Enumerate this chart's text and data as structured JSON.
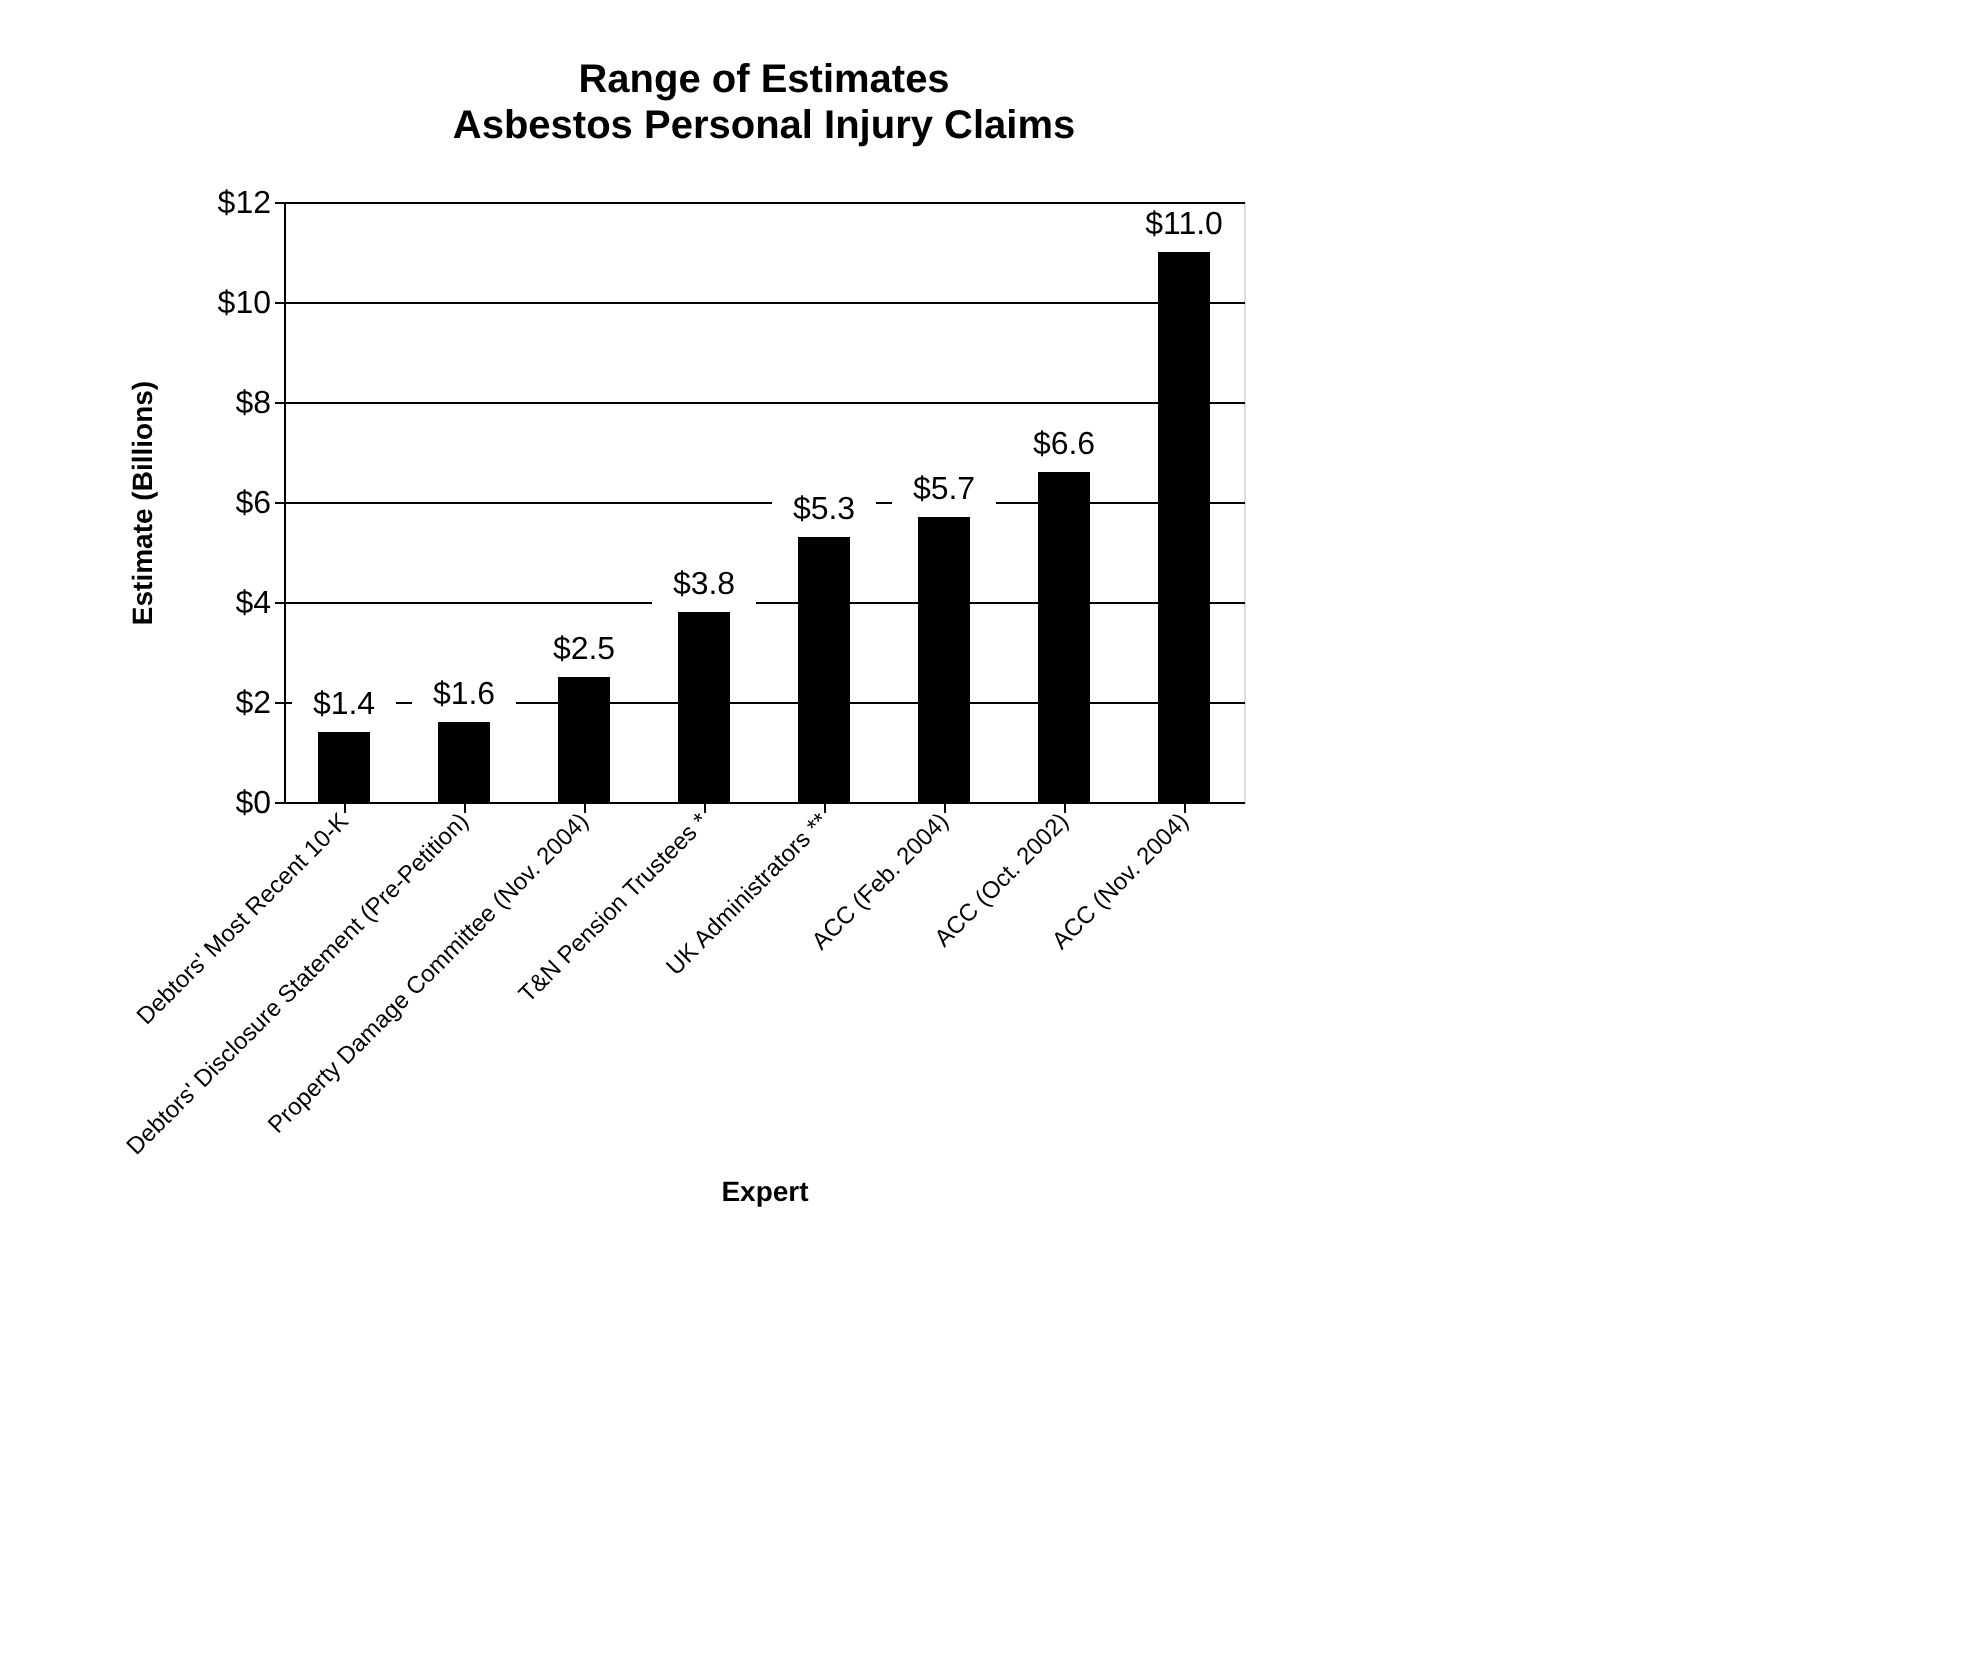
{
  "chart_data": {
    "type": "bar",
    "title": "Range of Estimates",
    "subtitle": "Asbestos Personal Injury Claims",
    "xlabel": "Expert",
    "ylabel": "Estimate (Billions)",
    "categories": [
      "Debtors' Most Recent 10-K",
      "Debtors' Disclosure Statement (Pre-Petition)",
      "Property Damage Committee (Nov. 2004)",
      "T&N Pension Trustees *",
      "UK Administrators **",
      "ACC (Feb. 2004)",
      "ACC (Oct. 2002)",
      "ACC (Nov. 2004)"
    ],
    "values": [
      1.4,
      1.6,
      2.5,
      3.8,
      5.3,
      5.7,
      6.6,
      11.0
    ],
    "value_labels": [
      "$1.4",
      "$1.6",
      "$2.5",
      "$3.8",
      "$5.3",
      "$5.7",
      "$6.6",
      "$11.0"
    ],
    "color": "#000000",
    "ylim": [
      0,
      12
    ],
    "yticks": [
      {
        "value": 0,
        "label": "$0"
      },
      {
        "value": 2,
        "label": "$2"
      },
      {
        "value": 4,
        "label": "$4"
      },
      {
        "value": 6,
        "label": "$6"
      },
      {
        "value": 8,
        "label": "$8"
      },
      {
        "value": 10,
        "label": "$10"
      },
      {
        "value": 12,
        "label": "$12"
      }
    ],
    "grid": "y"
  }
}
